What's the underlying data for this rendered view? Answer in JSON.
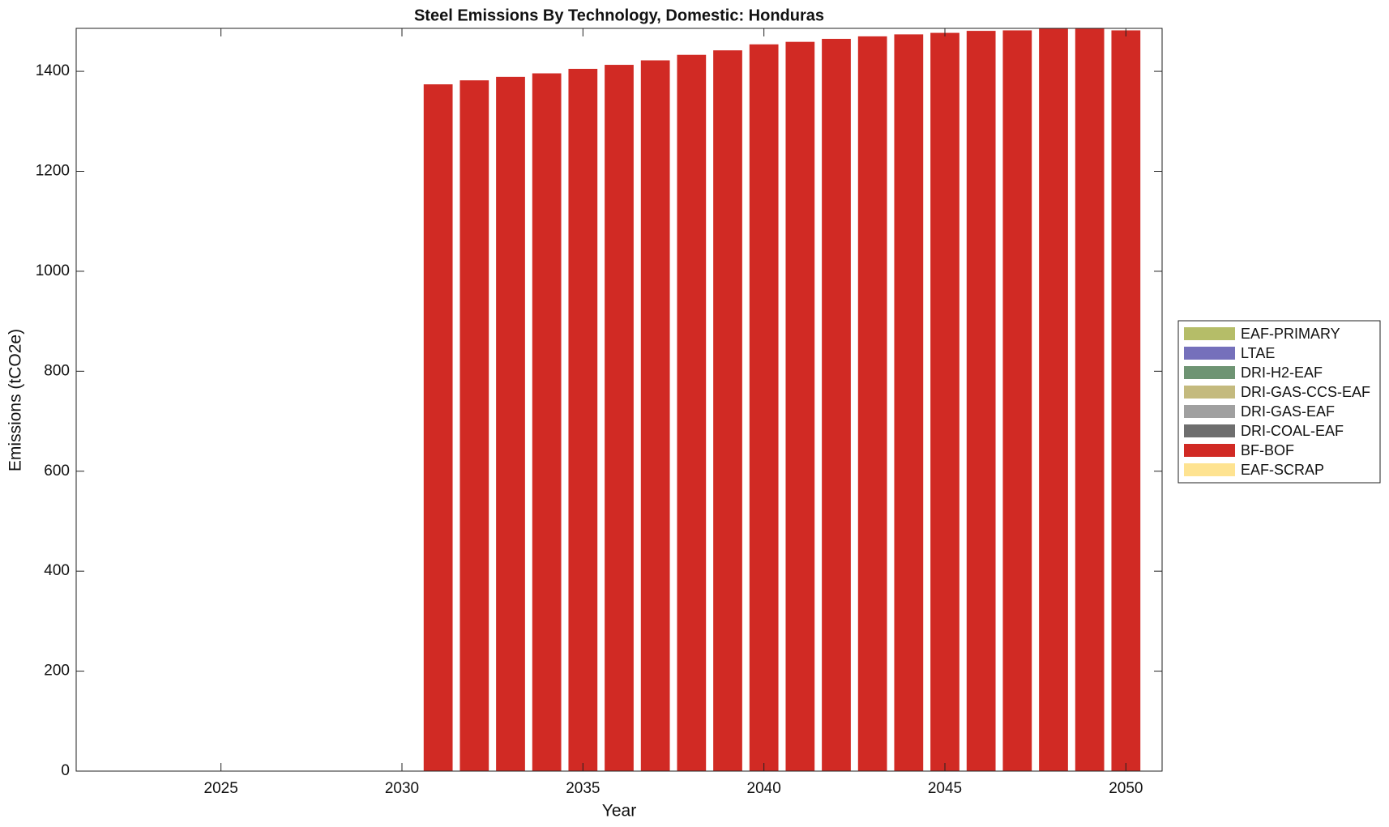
{
  "chart_data": {
    "type": "stacked-bar",
    "title": "Steel Emissions By Technology, Domestic: Honduras",
    "x_label": "Year",
    "y_label": "Emissions (tCO2e)",
    "x": [
      2031,
      2032,
      2033,
      2034,
      2035,
      2036,
      2037,
      2038,
      2039,
      2040,
      2041,
      2042,
      2043,
      2044,
      2045,
      2046,
      2047,
      2048,
      2049,
      2050
    ],
    "series": [
      {
        "name": "EAF-PRIMARY",
        "color": "#b5bd68",
        "values": [
          0,
          0,
          0,
          0,
          0,
          0,
          0,
          0,
          0,
          0,
          0,
          0,
          0,
          0,
          0,
          0,
          0,
          0,
          0,
          0
        ]
      },
      {
        "name": "LTAE",
        "color": "#7570bb",
        "values": [
          0,
          0,
          0,
          0,
          0,
          0,
          0,
          0,
          0,
          0,
          0,
          0,
          0,
          0,
          0,
          0,
          0,
          0,
          0,
          0
        ]
      },
      {
        "name": "DRI-H2-EAF",
        "color": "#6e9473",
        "values": [
          0,
          0,
          0,
          0,
          0,
          0,
          0,
          0,
          0,
          0,
          0,
          0,
          0,
          0,
          0,
          0,
          0,
          0,
          0,
          0
        ]
      },
      {
        "name": "DRI-GAS-CCS-EAF",
        "color": "#c4ba7e",
        "values": [
          0,
          0,
          0,
          0,
          0,
          0,
          0,
          0,
          0,
          0,
          0,
          0,
          0,
          0,
          0,
          0,
          0,
          0,
          0,
          0
        ]
      },
      {
        "name": "DRI-GAS-EAF",
        "color": "#a0a0a0",
        "values": [
          0,
          0,
          0,
          0,
          0,
          0,
          0,
          0,
          0,
          0,
          0,
          0,
          0,
          0,
          0,
          0,
          0,
          0,
          0,
          0
        ]
      },
      {
        "name": "DRI-COAL-EAF",
        "color": "#6e6e6e",
        "values": [
          0,
          0,
          0,
          0,
          0,
          0,
          0,
          0,
          0,
          0,
          0,
          0,
          0,
          0,
          0,
          0,
          0,
          0,
          0,
          0
        ]
      },
      {
        "name": "BF-BOF",
        "color": "#d12a24",
        "values": [
          1374,
          1382,
          1389,
          1396,
          1405,
          1413,
          1422,
          1433,
          1442,
          1454,
          1459,
          1465,
          1470,
          1474,
          1477,
          1481,
          1482,
          1486,
          1486,
          1482
        ]
      },
      {
        "name": "EAF-SCRAP",
        "color": "#fee391",
        "values": [
          0,
          0,
          0,
          0,
          0,
          0,
          0,
          0,
          0,
          0,
          0,
          0,
          0,
          0,
          0,
          0,
          0,
          0,
          0,
          0
        ]
      }
    ],
    "xlim": [
      2021,
      2051
    ],
    "xticks": [
      2025,
      2030,
      2035,
      2040,
      2045,
      2050
    ],
    "ylim": [
      0,
      1486
    ],
    "yticks": [
      0,
      200,
      400,
      600,
      800,
      1000,
      1200,
      1400
    ],
    "legend": "outside-right"
  }
}
